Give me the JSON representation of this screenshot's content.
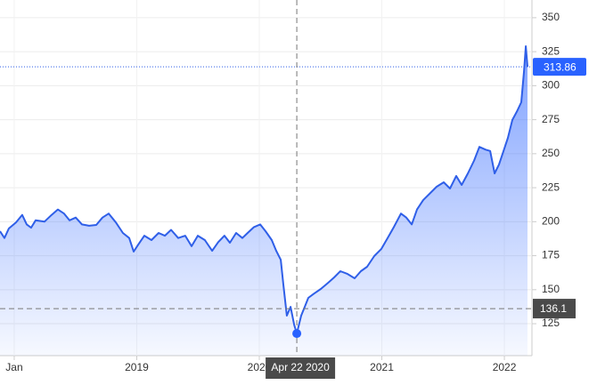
{
  "chart_data": {
    "type": "area",
    "x": [
      2017.884,
      2017.92,
      2017.956,
      2018.015,
      2018.065,
      2018.102,
      2018.138,
      2018.175,
      2018.247,
      2018.305,
      2018.356,
      2018.407,
      2018.451,
      2018.502,
      2018.553,
      2018.611,
      2018.669,
      2018.72,
      2018.771,
      2018.829,
      2018.887,
      2018.938,
      2018.975,
      2019.011,
      2019.062,
      2019.12,
      2019.178,
      2019.229,
      2019.28,
      2019.338,
      2019.396,
      2019.447,
      2019.498,
      2019.556,
      2019.615,
      2019.665,
      2019.716,
      2019.76,
      2019.811,
      2019.862,
      2019.905,
      2019.956,
      2020.007,
      2020.051,
      2020.102,
      2020.138,
      2020.175,
      2020.196,
      2020.225,
      2020.255,
      2020.284,
      2020.306,
      2020.342,
      2020.371,
      2020.4,
      2020.444,
      2020.502,
      2020.56,
      2020.611,
      2020.662,
      2020.72,
      2020.778,
      2020.829,
      2020.88,
      2020.938,
      2020.996,
      2021.047,
      2021.098,
      2021.156,
      2021.2,
      2021.244,
      2021.287,
      2021.338,
      2021.389,
      2021.447,
      2021.505,
      2021.556,
      2021.607,
      2021.651,
      2021.702,
      2021.753,
      2021.796,
      2021.847,
      2021.884,
      2021.92,
      2021.956,
      2021.993,
      2022.029,
      2022.065,
      2022.102,
      2022.138,
      2022.16,
      2022.175,
      2022.189
    ],
    "series": [
      {
        "color": "#2f5fe8",
        "values": [
          193,
          188,
          195,
          199.5,
          205,
          198,
          195.6,
          201,
          200,
          205,
          209,
          206,
          201,
          203,
          198,
          197,
          197.6,
          203,
          206,
          199.5,
          191.7,
          188,
          178,
          183,
          189.7,
          186.5,
          191.7,
          189.7,
          194,
          188,
          189.7,
          182,
          189.7,
          186.5,
          178.6,
          185,
          189.7,
          184.5,
          191.7,
          188,
          191.7,
          196,
          198,
          193,
          186.5,
          178.6,
          172,
          153.8,
          130.9,
          137.4,
          124.3,
          117.8,
          130.9,
          137.4,
          144,
          147,
          150.5,
          155,
          159,
          163.6,
          161.6,
          158.4,
          163.6,
          166.9,
          174.7,
          180,
          188,
          196,
          206,
          203,
          198,
          209,
          216,
          220.5,
          225.7,
          229,
          224.4,
          233.6,
          227,
          235.5,
          245,
          255,
          253,
          252,
          235.5,
          242,
          252,
          261.7,
          274.8,
          281,
          287.8,
          310.7,
          329,
          313.86
        ]
      }
    ],
    "xlim": [
      2017.884,
      2022.225
    ],
    "xticks": [
      {
        "value": 2018,
        "label": "Jan"
      },
      2019,
      2020,
      2021,
      2022
    ],
    "ylim": [
      101.5,
      363
    ],
    "yticks": [
      125,
      150,
      175,
      200,
      225,
      250,
      275,
      300,
      325,
      350
    ],
    "grid": true,
    "crosshair": {
      "x": 2020.306,
      "x_label": "Apr 22 2020",
      "y": 136.1
    }
  }
}
